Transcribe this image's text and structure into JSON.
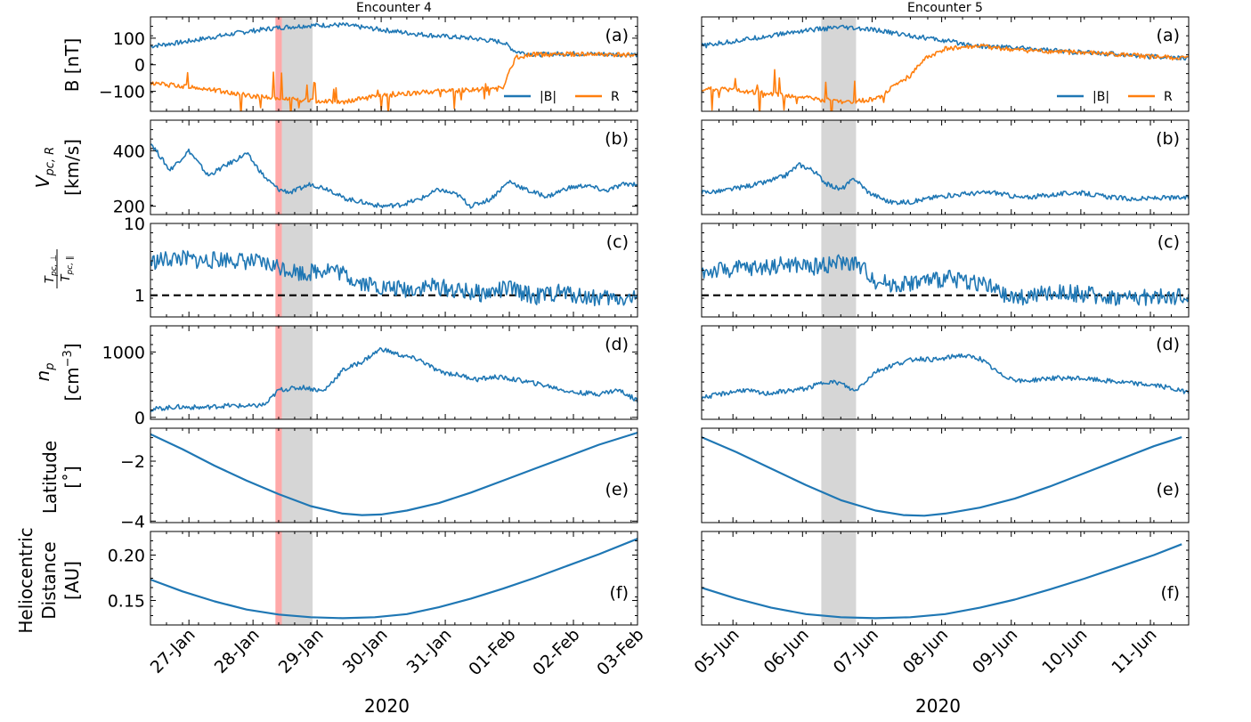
{
  "figure": {
    "year_label": "2020"
  },
  "colors": {
    "blue": "#1f77b4",
    "orange": "#ff7f0e",
    "red_band": "#ff9a9a",
    "gray_band": "#c8c8c8",
    "dashed": "#000000"
  },
  "chart_data": [
    {
      "type": "line",
      "title": "Encounter 4",
      "xlabel": "2020",
      "x_range": [
        0.0,
        7.6
      ],
      "x_ticks": [
        {
          "pos": 0.6,
          "label": "27-Jan"
        },
        {
          "pos": 1.6,
          "label": "28-Jan"
        },
        {
          "pos": 2.6,
          "label": "29-Jan"
        },
        {
          "pos": 3.6,
          "label": "30-Jan"
        },
        {
          "pos": 4.6,
          "label": "31-Jan"
        },
        {
          "pos": 5.6,
          "label": "01-Feb"
        },
        {
          "pos": 6.6,
          "label": "02-Feb"
        },
        {
          "pos": 7.6,
          "label": "03-Feb"
        }
      ],
      "bands": [
        {
          "kind": "red",
          "x0": 1.95,
          "x1": 2.05
        },
        {
          "kind": "gray",
          "x0": 2.05,
          "x1": 2.53
        }
      ],
      "panels": [
        {
          "tag": "(a)",
          "ylim": [
            -175,
            180
          ],
          "yticks": [
            {
              "v": 100,
              "label": "100"
            },
            {
              "v": 0,
              "label": "0"
            },
            {
              "v": -100,
              "label": "−100"
            }
          ],
          "legend": [
            "|B|",
            "R"
          ],
          "series": [
            {
              "name": "|B|",
              "color": "#1f77b4",
              "x": [
                0,
                0.5,
                1.0,
                1.5,
                2.0,
                2.5,
                3.0,
                3.5,
                4.0,
                4.5,
                5.0,
                5.5,
                5.7,
                6.0,
                6.5,
                7.0,
                7.6
              ],
              "y": [
                70,
                85,
                105,
                125,
                140,
                148,
                150,
                135,
                120,
                108,
                100,
                85,
                50,
                38,
                42,
                40,
                38
              ]
            },
            {
              "name": "R",
              "color": "#ff7f0e",
              "x": [
                0,
                0.5,
                1.0,
                1.5,
                2.0,
                2.5,
                3.0,
                3.5,
                4.0,
                4.5,
                5.0,
                5.5,
                5.7,
                6.0,
                6.5,
                7.0,
                7.6
              ],
              "y": [
                -70,
                -80,
                -95,
                -115,
                -125,
                -135,
                -140,
                -120,
                -108,
                -100,
                -95,
                -85,
                30,
                38,
                40,
                38,
                36
              ]
            }
          ]
        },
        {
          "tag": "(b)",
          "ylim": [
            170,
            510
          ],
          "yticks": [
            {
              "v": 400,
              "label": "400"
            },
            {
              "v": 200,
              "label": "200"
            }
          ],
          "series": [
            {
              "name": "V",
              "color": "#1f77b4",
              "x": [
                0,
                0.3,
                0.6,
                0.9,
                1.2,
                1.5,
                1.8,
                2.0,
                2.2,
                2.5,
                2.8,
                3.0,
                3.3,
                3.6,
                3.9,
                4.2,
                4.5,
                4.8,
                5.0,
                5.3,
                5.6,
                5.9,
                6.2,
                6.5,
                6.8,
                7.1,
                7.4,
                7.6
              ],
              "y": [
                430,
                330,
                400,
                310,
                350,
                390,
                300,
                260,
                250,
                280,
                260,
                230,
                215,
                200,
                205,
                225,
                260,
                240,
                200,
                225,
                290,
                255,
                235,
                265,
                275,
                255,
                280,
                280
              ]
            }
          ]
        },
        {
          "tag": "(c)",
          "ylim": [
            0.5,
            10
          ],
          "yticks": [
            {
              "v": 10,
              "label": "10"
            },
            {
              "v": 1,
              "label": "1"
            }
          ],
          "log": true,
          "ref_line": 1,
          "series": [
            {
              "name": "T ratio",
              "color": "#1f77b4",
              "x": [
                0,
                0.4,
                0.8,
                1.2,
                1.6,
                2.0,
                2.4,
                2.8,
                3.2,
                3.6,
                4.0,
                4.4,
                4.8,
                5.2,
                5.6,
                6.0,
                6.4,
                6.8,
                7.2,
                7.6
              ],
              "y": [
                2.9,
                3.3,
                3.0,
                3.2,
                2.9,
                2.5,
                2.0,
                2.4,
                1.6,
                1.3,
                1.2,
                1.35,
                1.15,
                1.05,
                1.25,
                0.95,
                1.1,
                0.95,
                0.9,
                0.92
              ]
            }
          ]
        },
        {
          "tag": "(d)",
          "ylim": [
            -30,
            1400
          ],
          "yticks": [
            {
              "v": 1000,
              "label": "1000"
            },
            {
              "v": 0,
              "label": "0"
            }
          ],
          "series": [
            {
              "name": "np",
              "color": "#1f77b4",
              "x": [
                0,
                0.4,
                0.8,
                1.2,
                1.6,
                1.8,
                2.0,
                2.4,
                2.7,
                3.0,
                3.3,
                3.6,
                3.9,
                4.2,
                4.5,
                4.8,
                5.1,
                5.4,
                5.8,
                6.2,
                6.6,
                7.0,
                7.3,
                7.6
              ],
              "y": [
                120,
                160,
                150,
                180,
                170,
                200,
                420,
                460,
                400,
                720,
                850,
                1050,
                950,
                880,
                700,
                650,
                580,
                620,
                560,
                480,
                380,
                360,
                420,
                260
              ]
            }
          ]
        },
        {
          "tag": "(e)",
          "ylim": [
            -4.05,
            -0.9
          ],
          "yticks": [
            {
              "v": -2,
              "label": "−2"
            },
            {
              "v": -4,
              "label": "−4"
            }
          ],
          "series": [
            {
              "name": "Latitude",
              "color": "#1f77b4",
              "x": [
                0,
                0.5,
                1.0,
                1.5,
                2.0,
                2.5,
                3.0,
                3.3,
                3.6,
                4.0,
                4.5,
                5.0,
                5.5,
                6.0,
                6.5,
                7.0,
                7.6
              ],
              "y": [
                -1.1,
                -1.6,
                -2.15,
                -2.65,
                -3.1,
                -3.5,
                -3.75,
                -3.8,
                -3.78,
                -3.65,
                -3.4,
                -3.05,
                -2.65,
                -2.25,
                -1.85,
                -1.45,
                -1.05
              ]
            }
          ]
        },
        {
          "tag": "(f)",
          "ylim": [
            0.123,
            0.226
          ],
          "yticks": [
            {
              "v": 0.2,
              "label": "0.20"
            },
            {
              "v": 0.15,
              "label": "0.15"
            }
          ],
          "series": [
            {
              "name": "Distance",
              "color": "#1f77b4",
              "x": [
                0,
                0.5,
                1.0,
                1.5,
                2.0,
                2.5,
                3.0,
                3.5,
                4.0,
                4.5,
                5.0,
                5.5,
                6.0,
                6.5,
                7.0,
                7.6
              ],
              "y": [
                0.173,
                0.16,
                0.149,
                0.14,
                0.1345,
                0.1315,
                0.1305,
                0.1315,
                0.135,
                0.1425,
                0.152,
                0.163,
                0.175,
                0.188,
                0.201,
                0.218
              ]
            }
          ]
        }
      ]
    },
    {
      "type": "line",
      "title": "Encounter 5",
      "xlabel": "2020",
      "x_range": [
        0.0,
        7.0
      ],
      "x_ticks": [
        {
          "pos": 0.45,
          "label": "05-Jun"
        },
        {
          "pos": 1.45,
          "label": "06-Jun"
        },
        {
          "pos": 2.45,
          "label": "07-Jun"
        },
        {
          "pos": 3.45,
          "label": "08-Jun"
        },
        {
          "pos": 4.45,
          "label": "09-Jun"
        },
        {
          "pos": 5.45,
          "label": "10-Jun"
        },
        {
          "pos": 6.45,
          "label": "11-Jun"
        }
      ],
      "bands": [
        {
          "kind": "gray",
          "x0": 1.72,
          "x1": 2.22
        }
      ],
      "panels": [
        {
          "tag": "(a)",
          "ylim": [
            -175,
            180
          ],
          "yticks": [],
          "legend": [
            "|B|",
            "R"
          ],
          "series": [
            {
              "name": "|B|",
              "color": "#1f77b4",
              "x": [
                0,
                0.5,
                1.0,
                1.5,
                2.0,
                2.5,
                3.0,
                3.5,
                4.0,
                4.5,
                5.0,
                5.5,
                6.0,
                6.5,
                6.9
              ],
              "y": [
                70,
                90,
                110,
                130,
                140,
                130,
                110,
                90,
                70,
                65,
                55,
                45,
                40,
                30,
                25
              ]
            },
            {
              "name": "R",
              "color": "#ff7f0e",
              "x": [
                0,
                0.5,
                1.0,
                1.5,
                2.0,
                2.5,
                3.0,
                3.2,
                3.5,
                4.0,
                4.5,
                5.0,
                5.5,
                6.0,
                6.5,
                6.9
              ],
              "y": [
                -90,
                -95,
                -110,
                -125,
                -140,
                -130,
                -40,
                20,
                60,
                70,
                55,
                50,
                45,
                38,
                30,
                25
              ]
            }
          ]
        },
        {
          "tag": "(b)",
          "ylim": [
            170,
            510
          ],
          "yticks": [],
          "series": [
            {
              "name": "V",
              "color": "#1f77b4",
              "x": [
                0,
                0.3,
                0.6,
                0.9,
                1.2,
                1.4,
                1.6,
                1.8,
                2.0,
                2.2,
                2.4,
                2.7,
                3.0,
                3.4,
                3.8,
                4.2,
                4.6,
                5.0,
                5.4,
                5.8,
                6.2,
                6.6,
                6.9
              ],
              "y": [
                250,
                255,
                270,
                285,
                310,
                350,
                330,
                280,
                260,
                300,
                250,
                215,
                215,
                235,
                245,
                250,
                230,
                240,
                250,
                235,
                225,
                230,
                230
              ]
            }
          ]
        },
        {
          "tag": "(c)",
          "ylim": [
            0.5,
            10
          ],
          "yticks": [],
          "log": true,
          "ref_line": 1,
          "series": [
            {
              "name": "T ratio",
              "color": "#1f77b4",
              "x": [
                0,
                0.4,
                0.8,
                1.2,
                1.6,
                2.0,
                2.2,
                2.5,
                2.8,
                3.2,
                3.6,
                4.0,
                4.4,
                4.8,
                5.2,
                5.6,
                6.0,
                6.4,
                6.9
              ],
              "y": [
                2.1,
                2.3,
                2.4,
                2.7,
                2.5,
                2.9,
                2.8,
                1.6,
                1.4,
                1.6,
                1.7,
                1.5,
                0.9,
                1.0,
                1.1,
                1.0,
                0.92,
                0.95,
                0.95
              ]
            }
          ]
        },
        {
          "tag": "(d)",
          "ylim": [
            -30,
            1400
          ],
          "yticks": [],
          "series": [
            {
              "name": "np",
              "color": "#1f77b4",
              "x": [
                0,
                0.3,
                0.6,
                0.9,
                1.2,
                1.5,
                1.8,
                2.0,
                2.2,
                2.5,
                2.8,
                3.1,
                3.4,
                3.7,
                4.0,
                4.3,
                4.6,
                5.0,
                5.4,
                5.8,
                6.2,
                6.6,
                6.9
              ],
              "y": [
                300,
                360,
                420,
                360,
                400,
                440,
                550,
                520,
                400,
                700,
                820,
                900,
                880,
                950,
                900,
                650,
                550,
                600,
                600,
                560,
                520,
                480,
                400
              ]
            }
          ]
        },
        {
          "tag": "(e)",
          "ylim": [
            -4.05,
            -0.9
          ],
          "yticks": [],
          "series": [
            {
              "name": "Latitude",
              "color": "#1f77b4",
              "x": [
                0,
                0.5,
                1.0,
                1.5,
                2.0,
                2.5,
                2.9,
                3.2,
                3.5,
                4.0,
                4.5,
                5.0,
                5.5,
                6.0,
                6.5,
                6.9
              ],
              "y": [
                -1.2,
                -1.7,
                -2.25,
                -2.8,
                -3.3,
                -3.65,
                -3.8,
                -3.82,
                -3.75,
                -3.55,
                -3.25,
                -2.85,
                -2.4,
                -1.95,
                -1.5,
                -1.2
              ]
            }
          ]
        },
        {
          "tag": "(f)",
          "ylim": [
            0.123,
            0.226
          ],
          "yticks": [],
          "series": [
            {
              "name": "Distance",
              "color": "#1f77b4",
              "x": [
                0,
                0.5,
                1.0,
                1.5,
                2.0,
                2.5,
                3.0,
                3.5,
                4.0,
                4.5,
                5.0,
                5.5,
                6.0,
                6.5,
                6.9
              ],
              "y": [
                0.164,
                0.152,
                0.142,
                0.135,
                0.1315,
                0.1305,
                0.1315,
                0.135,
                0.142,
                0.151,
                0.162,
                0.174,
                0.187,
                0.2,
                0.212
              ]
            }
          ]
        }
      ]
    }
  ],
  "ylabels": [
    {
      "lines": [
        "B [nT]"
      ]
    },
    {
      "lines": [
        "V_pc,R",
        "[km/s]"
      ]
    },
    {
      "lines": [
        "T_pc,⊥ / T_pc,∥"
      ]
    },
    {
      "lines": [
        "n_p",
        "[cm⁻³]"
      ]
    },
    {
      "lines": [
        "Latitude",
        "[˚]"
      ]
    },
    {
      "lines": [
        "Heliocentric",
        "Distance",
        "[AU]"
      ]
    }
  ]
}
